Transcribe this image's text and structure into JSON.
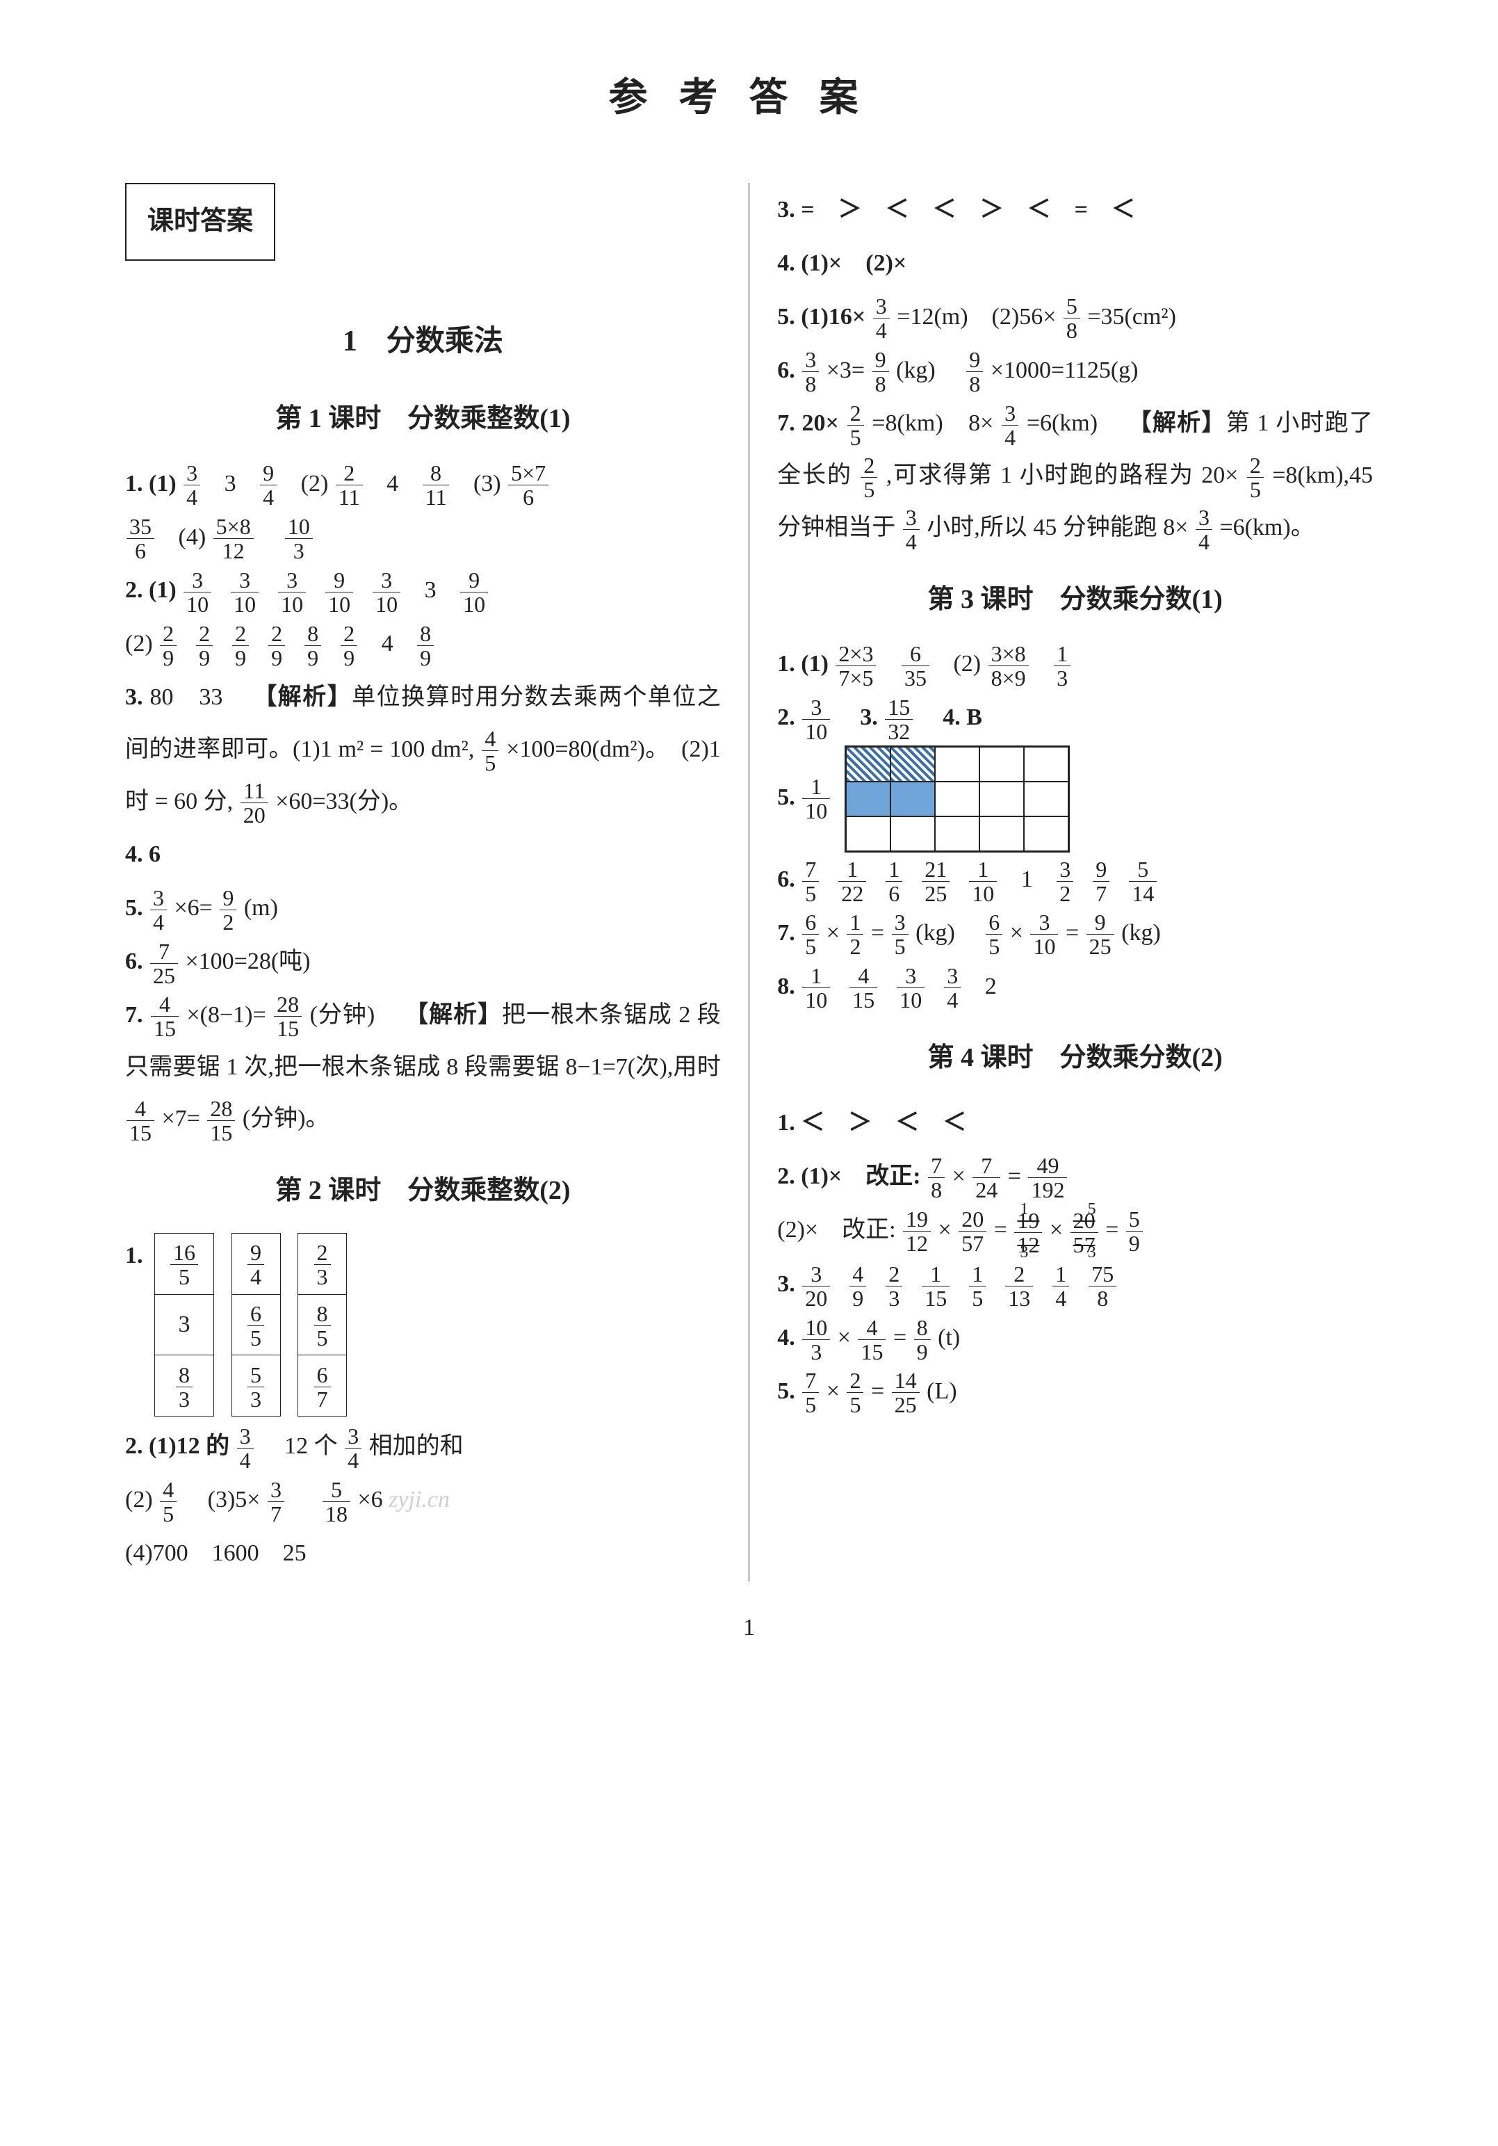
{
  "title": "参考答案",
  "box_header": "课时答案",
  "chapter": "1　分数乘法",
  "page_number": "1",
  "left": {
    "lesson1": "第 1 课时　分数乘整数(1)",
    "lesson2": "第 2 课时　分数乘整数(2)"
  },
  "right": {
    "lesson3": "第 3 课时　分数乘分数(1)",
    "lesson4": "第 4 课时　分数乘分数(2)"
  },
  "colors": {
    "text": "#222222",
    "background": "#ffffff",
    "grid_fill": "#6fa5d8",
    "grid_hatch_a": "#3b6fa8"
  },
  "left_content": {
    "l1_q1_pre": "1. (1)",
    "l1_q1_a": {
      "n": "3",
      "d": "4"
    },
    "l1_q1_b": "3",
    "l1_q1_c": {
      "n": "9",
      "d": "4"
    },
    "l1_q1_p2": "(2)",
    "l1_q1_d": {
      "n": "2",
      "d": "11"
    },
    "l1_q1_e": "4",
    "l1_q1_f": {
      "n": "8",
      "d": "11"
    },
    "l1_q1_p3": "(3)",
    "l1_q1_g": {
      "n": "5×7",
      "d": "6"
    },
    "l1_q1_h": {
      "n": "35",
      "d": "6"
    },
    "l1_q1_p4": "(4)",
    "l1_q1_i": {
      "n": "5×8",
      "d": "12"
    },
    "l1_q1_j": {
      "n": "10",
      "d": "3"
    },
    "l1_q2_pre": "2. (1)",
    "l1_q2_seq": [
      {
        "n": "3",
        "d": "10"
      },
      {
        "n": "3",
        "d": "10"
      },
      {
        "n": "3",
        "d": "10"
      },
      {
        "n": "9",
        "d": "10"
      },
      {
        "n": "3",
        "d": "10"
      }
    ],
    "l1_q2_mid": "3",
    "l1_q2_last": {
      "n": "9",
      "d": "10"
    },
    "l1_q2b_pre": "(2)",
    "l1_q2b_seq": [
      {
        "n": "2",
        "d": "9"
      },
      {
        "n": "2",
        "d": "9"
      },
      {
        "n": "2",
        "d": "9"
      },
      {
        "n": "2",
        "d": "9"
      },
      {
        "n": "8",
        "d": "9"
      },
      {
        "n": "2",
        "d": "9"
      }
    ],
    "l1_q2b_mid": "4",
    "l1_q2b_last": {
      "n": "8",
      "d": "9"
    },
    "l1_q3_pre": "3.",
    "l1_q3_a": "80　33",
    "l1_q3_analysis_label": "【解析】",
    "l1_q3_analysis": "单位换算时用分数去乘两个单位之间的进率即可。(1)1 m² = 100 dm²,",
    "l1_q3_f1": {
      "n": "4",
      "d": "5"
    },
    "l1_q3_tail1": "×100=80(dm²)。　(2)1 时 = 60 分,",
    "l1_q3_f2": {
      "n": "11",
      "d": "20"
    },
    "l1_q3_tail2": "×60=33(分)。",
    "l1_q4": "4. 6",
    "l1_q5_pre": "5.",
    "l1_q5_f1": {
      "n": "3",
      "d": "4"
    },
    "l1_q5_mid": "×6=",
    "l1_q5_f2": {
      "n": "9",
      "d": "2"
    },
    "l1_q5_tail": "(m)",
    "l1_q6_pre": "6.",
    "l1_q6_f1": {
      "n": "7",
      "d": "25"
    },
    "l1_q6_tail": "×100=28(吨)",
    "l1_q7_pre": "7.",
    "l1_q7_f1": {
      "n": "4",
      "d": "15"
    },
    "l1_q7_mid1": "×(8−1)=",
    "l1_q7_f2": {
      "n": "28",
      "d": "15"
    },
    "l1_q7_mid2": "(分钟)",
    "l1_q7_analysis_label": "【解析】",
    "l1_q7_analysis": "把一根木条锯成 2 段只需要锯 1 次,把一根木条锯成 8 段需要锯 8−1=7(次),用时",
    "l1_q7_f3": {
      "n": "4",
      "d": "15"
    },
    "l1_q7_mid3": "×7=",
    "l1_q7_f4": {
      "n": "28",
      "d": "15"
    },
    "l1_q7_tail": "(分钟)。",
    "l2_q1_label": "1.",
    "l2_table1": [
      [
        "16",
        "5"
      ],
      [
        "3",
        ""
      ],
      [
        "8",
        "3"
      ]
    ],
    "l2_table2": [
      [
        "9",
        "4"
      ],
      [
        "6",
        "5"
      ],
      [
        "5",
        "3"
      ]
    ],
    "l2_table3": [
      [
        "2",
        "3"
      ],
      [
        "8",
        "5"
      ],
      [
        "6",
        "7"
      ]
    ],
    "l2_q2_pre": "2. (1)12 的",
    "l2_q2_f1": {
      "n": "3",
      "d": "4"
    },
    "l2_q2_mid": "　12 个",
    "l2_q2_f2": {
      "n": "3",
      "d": "4"
    },
    "l2_q2_tail": "相加的和",
    "l2_q2b_pre": "(2)",
    "l2_q2b_f1": {
      "n": "4",
      "d": "5"
    },
    "l2_q2b_mid1": "　(3)5×",
    "l2_q2b_f2": {
      "n": "3",
      "d": "7"
    },
    "l2_q2b_mid2": "　",
    "l2_q2b_f3": {
      "n": "5",
      "d": "18"
    },
    "l2_q2b_mid3": "×6",
    "l2_q2c": "(4)700　1600　25"
  },
  "right_content": {
    "r_q3": "3. =　＞　＜　＜　＞　＜　=　＜",
    "r_q4": "4. (1)×　(2)×",
    "r_q5_pre": "5. (1)16×",
    "r_q5_f1": {
      "n": "3",
      "d": "4"
    },
    "r_q5_mid1": "=12(m)　(2)56×",
    "r_q5_f2": {
      "n": "5",
      "d": "8"
    },
    "r_q5_tail": "=35(cm²)",
    "r_q6_pre": "6.",
    "r_q6_f1": {
      "n": "3",
      "d": "8"
    },
    "r_q6_mid1": "×3=",
    "r_q6_f2": {
      "n": "9",
      "d": "8"
    },
    "r_q6_mid2": "(kg)　",
    "r_q6_f3": {
      "n": "9",
      "d": "8"
    },
    "r_q6_tail": "×1000=1125(g)",
    "r_q7_pre": "7. 20×",
    "r_q7_f1": {
      "n": "2",
      "d": "5"
    },
    "r_q7_mid1": "=8(km)　8×",
    "r_q7_f2": {
      "n": "3",
      "d": "4"
    },
    "r_q7_mid2": "=6(km)",
    "r_q7_analysis_label": "【解析】",
    "r_q7_analysis1": "第 1 小时跑了全长的",
    "r_q7_f3": {
      "n": "2",
      "d": "5"
    },
    "r_q7_analysis2": ",可求得第 1 小时跑的路程为 20×",
    "r_q7_f4": {
      "n": "2",
      "d": "5"
    },
    "r_q7_analysis3": "=8(km),45 分钟相当于",
    "r_q7_f5": {
      "n": "3",
      "d": "4"
    },
    "r_q7_analysis4": "小时,所以 45 分钟能跑 8×",
    "r_q7_f6": {
      "n": "3",
      "d": "4"
    },
    "r_q7_analysis5": "=6(km)。",
    "l3_q1_pre": "1. (1)",
    "l3_q1_f1": {
      "n": "2×3",
      "d": "7×5"
    },
    "l3_q1_f2": {
      "n": "6",
      "d": "35"
    },
    "l3_q1_p2": "(2)",
    "l3_q1_f3": {
      "n": "3×8",
      "d": "8×9"
    },
    "l3_q1_f4": {
      "n": "1",
      "d": "3"
    },
    "l3_q2_pre": "2.",
    "l3_q2_f1": {
      "n": "3",
      "d": "10"
    },
    "l3_q3_pre": "3.",
    "l3_q3_f1": {
      "n": "15",
      "d": "32"
    },
    "l3_q4": "4. B",
    "l3_q5_pre": "5.",
    "l3_q5_f1": {
      "n": "1",
      "d": "10"
    },
    "l3_q5_grid": {
      "rows": 3,
      "cols": 5,
      "cells": [
        [
          "hatch",
          "hatch",
          "",
          "",
          ""
        ],
        [
          "fill",
          "fill",
          "",
          "",
          ""
        ],
        [
          "",
          "",
          "",
          "",
          ""
        ]
      ]
    },
    "l3_q6_pre": "6.",
    "l3_q6_fracs": [
      {
        "n": "7",
        "d": "5"
      },
      {
        "n": "1",
        "d": "22"
      },
      {
        "n": "1",
        "d": "6"
      },
      {
        "n": "21",
        "d": "25"
      },
      {
        "n": "1",
        "d": "10"
      }
    ],
    "l3_q6_mid": "1",
    "l3_q6_fracs2": [
      {
        "n": "3",
        "d": "2"
      },
      {
        "n": "9",
        "d": "7"
      },
      {
        "n": "5",
        "d": "14"
      }
    ],
    "l3_q7_pre": "7.",
    "l3_q7_f1": {
      "n": "6",
      "d": "5"
    },
    "l3_q7_m1": "×",
    "l3_q7_f2": {
      "n": "1",
      "d": "2"
    },
    "l3_q7_m2": "=",
    "l3_q7_f3": {
      "n": "3",
      "d": "5"
    },
    "l3_q7_m3": "(kg)　",
    "l3_q7_f4": {
      "n": "6",
      "d": "5"
    },
    "l3_q7_m4": "×",
    "l3_q7_f5": {
      "n": "3",
      "d": "10"
    },
    "l3_q7_m5": "=",
    "l3_q7_f6": {
      "n": "9",
      "d": "25"
    },
    "l3_q7_tail": "(kg)",
    "l3_q8_pre": "8.",
    "l3_q8_fracs": [
      {
        "n": "1",
        "d": "10"
      },
      {
        "n": "4",
        "d": "15"
      },
      {
        "n": "3",
        "d": "10"
      },
      {
        "n": "3",
        "d": "4"
      }
    ],
    "l3_q8_tail": "2",
    "l4_q1": "1. ＜　＞　＜　＜",
    "l4_q2a_pre": "2. (1)×　改正:",
    "l4_q2a_f1": {
      "n": "7",
      "d": "8"
    },
    "l4_q2a_m1": "×",
    "l4_q2a_f2": {
      "n": "7",
      "d": "24"
    },
    "l4_q2a_m2": "=",
    "l4_q2a_f3": {
      "n": "49",
      "d": "192"
    },
    "l4_q2b_pre": "(2)×　改正:",
    "l4_q2b_f1": {
      "n": "19",
      "d": "12"
    },
    "l4_q2b_m1": "×",
    "l4_q2b_f2": {
      "n": "20",
      "d": "57"
    },
    "l4_q2b_m2": "=",
    "l4_q2b_strike1_sup": "1",
    "l4_q2b_strike1": {
      "n": "19",
      "d": "12"
    },
    "l4_q2b_strike1_sub": "3",
    "l4_q2b_m3": "×",
    "l4_q2b_strike2_sup": "5",
    "l4_q2b_strike2": {
      "n": "20",
      "d": "57"
    },
    "l4_q2b_strike2_sub": "3",
    "l4_q2b_m4": "=",
    "l4_q2b_f5": {
      "n": "5",
      "d": "9"
    },
    "l4_q3_pre": "3.",
    "l4_q3_fracs": [
      {
        "n": "3",
        "d": "20"
      },
      {
        "n": "4",
        "d": "9"
      },
      {
        "n": "2",
        "d": "3"
      },
      {
        "n": "1",
        "d": "15"
      },
      {
        "n": "1",
        "d": "5"
      },
      {
        "n": "2",
        "d": "13"
      },
      {
        "n": "1",
        "d": "4"
      },
      {
        "n": "75",
        "d": "8"
      }
    ],
    "l4_q4_pre": "4.",
    "l4_q4_f1": {
      "n": "10",
      "d": "3"
    },
    "l4_q4_m1": "×",
    "l4_q4_f2": {
      "n": "4",
      "d": "15"
    },
    "l4_q4_m2": "=",
    "l4_q4_f3": {
      "n": "8",
      "d": "9"
    },
    "l4_q4_tail": "(t)",
    "l4_q5_pre": "5.",
    "l4_q5_f1": {
      "n": "7",
      "d": "5"
    },
    "l4_q5_m1": "×",
    "l4_q5_f2": {
      "n": "2",
      "d": "5"
    },
    "l4_q5_m2": "=",
    "l4_q5_f3": {
      "n": "14",
      "d": "25"
    },
    "l4_q5_tail": "(L)"
  }
}
